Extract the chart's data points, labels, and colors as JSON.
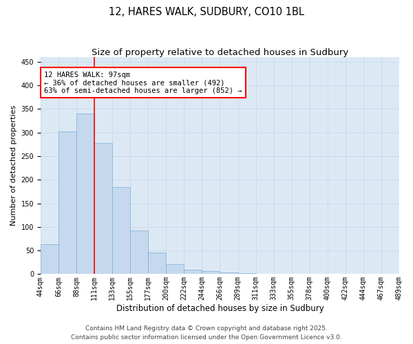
{
  "title": "12, HARES WALK, SUDBURY, CO10 1BL",
  "subtitle": "Size of property relative to detached houses in Sudbury",
  "xlabel": "Distribution of detached houses by size in Sudbury",
  "ylabel": "Number of detached properties",
  "bar_values": [
    63,
    302,
    340,
    278,
    185,
    93,
    46,
    21,
    10,
    6,
    3,
    2,
    1,
    1,
    0,
    0,
    1,
    0,
    0,
    1
  ],
  "categories": [
    "44sqm",
    "66sqm",
    "88sqm",
    "111sqm",
    "133sqm",
    "155sqm",
    "177sqm",
    "200sqm",
    "222sqm",
    "244sqm",
    "266sqm",
    "289sqm",
    "311sqm",
    "333sqm",
    "355sqm",
    "378sqm",
    "400sqm",
    "422sqm",
    "444sqm",
    "467sqm",
    "489sqm"
  ],
  "bar_color": "#c5d8ee",
  "bar_edge_color": "#7aafd4",
  "vline_color": "red",
  "vline_position": 2,
  "annotation_text": "12 HARES WALK: 97sqm\n← 36% of detached houses are smaller (492)\n63% of semi-detached houses are larger (852) →",
  "annotation_box_color": "white",
  "annotation_box_edge": "red",
  "ylim": [
    0,
    460
  ],
  "yticks": [
    0,
    50,
    100,
    150,
    200,
    250,
    300,
    350,
    400,
    450
  ],
  "grid_color": "#c8d8ec",
  "background_color": "#dce9f5",
  "footer_line1": "Contains HM Land Registry data © Crown copyright and database right 2025.",
  "footer_line2": "Contains public sector information licensed under the Open Government Licence v3.0.",
  "title_fontsize": 10.5,
  "subtitle_fontsize": 9.5,
  "xlabel_fontsize": 8.5,
  "ylabel_fontsize": 8,
  "tick_fontsize": 7,
  "annotation_fontsize": 7.5,
  "footer_fontsize": 6.5
}
